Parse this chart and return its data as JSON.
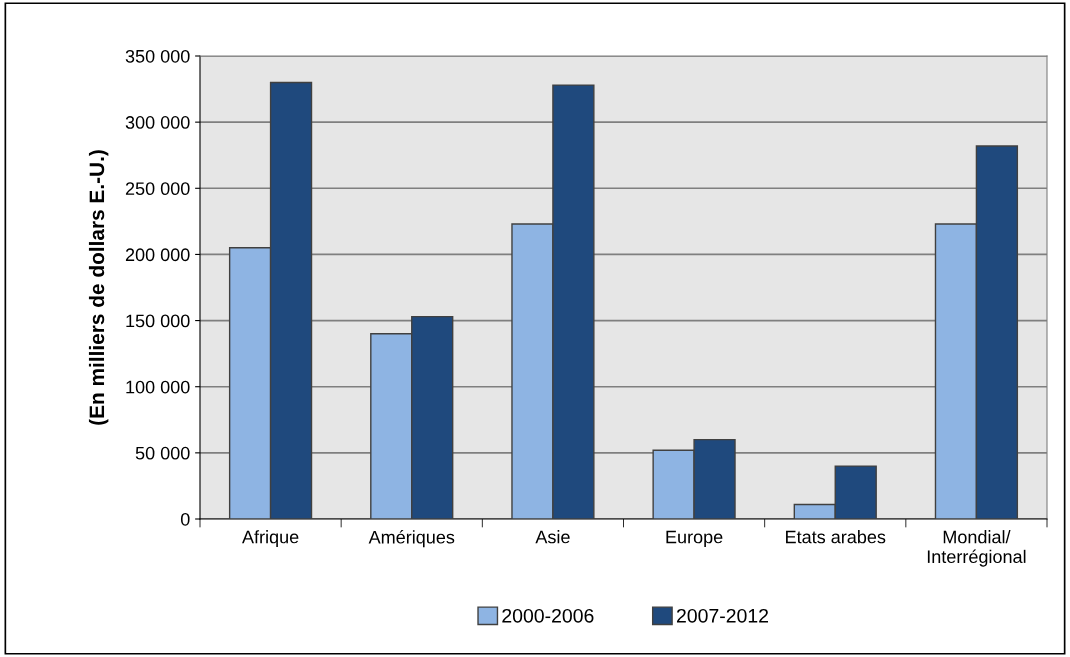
{
  "chart_data": {
    "type": "bar",
    "ylabel": "(En milliers de dollars E.-U.)",
    "categories": [
      "Afrique",
      "Amériques",
      "Asie",
      "Europe",
      "Etats arabes",
      "Mondial/\nInterrégional"
    ],
    "series": [
      {
        "name": "2000-2006",
        "color": "#8eb4e3",
        "values": [
          205000,
          140000,
          223000,
          52000,
          11000,
          223000
        ]
      },
      {
        "name": "2007-2012",
        "color": "#1f497d",
        "values": [
          330000,
          153000,
          328000,
          60000,
          40000,
          282000
        ]
      }
    ],
    "ylim": [
      0,
      350000
    ],
    "yticks": [
      {
        "value": 0,
        "label": "0"
      },
      {
        "value": 50000,
        "label": "50 000"
      },
      {
        "value": 100000,
        "label": "100 000"
      },
      {
        "value": 150000,
        "label": "150 000"
      },
      {
        "value": 200000,
        "label": "200 000"
      },
      {
        "value": 250000,
        "label": "250 000"
      },
      {
        "value": 300000,
        "label": "300 000"
      },
      {
        "value": 350000,
        "label": "350 000"
      }
    ],
    "grid": "y",
    "legend": "bottom"
  }
}
